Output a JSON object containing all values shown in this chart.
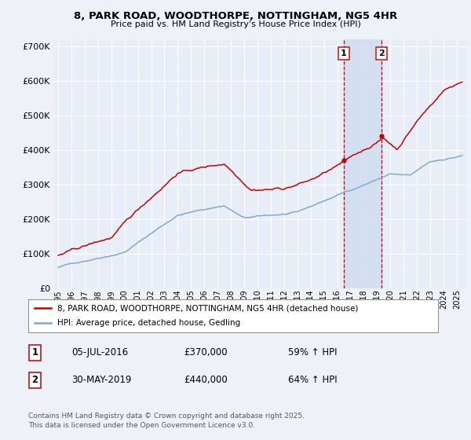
{
  "title": "8, PARK ROAD, WOODTHORPE, NOTTINGHAM, NG5 4HR",
  "subtitle": "Price paid vs. HM Land Registry's House Price Index (HPI)",
  "background_color": "#eef2f8",
  "plot_bg_color": "#e8eef8",
  "grid_color": "#ffffff",
  "red_color": "#cc0000",
  "blue_color": "#7eaacc",
  "dashed_color": "#cc0000",
  "span_color": "#d0ddf0",
  "transaction1": {
    "date": "05-JUL-2016",
    "price": 370000,
    "hpi_pct": "59%"
  },
  "transaction2": {
    "date": "30-MAY-2019",
    "price": 440000,
    "hpi_pct": "64%"
  },
  "legend1": "8, PARK ROAD, WOODTHORPE, NOTTINGHAM, NG5 4HR (detached house)",
  "legend2": "HPI: Average price, detached house, Gedling",
  "footer": "Contains HM Land Registry data © Crown copyright and database right 2025.\nThis data is licensed under the Open Government Licence v3.0.",
  "ylim": [
    0,
    720000
  ],
  "yticks": [
    0,
    100000,
    200000,
    300000,
    400000,
    500000,
    600000,
    700000
  ],
  "start_year": 1995,
  "end_year": 2025,
  "trans1_year": 2016,
  "trans1_month": 7,
  "trans2_year": 2019,
  "trans2_month": 5
}
